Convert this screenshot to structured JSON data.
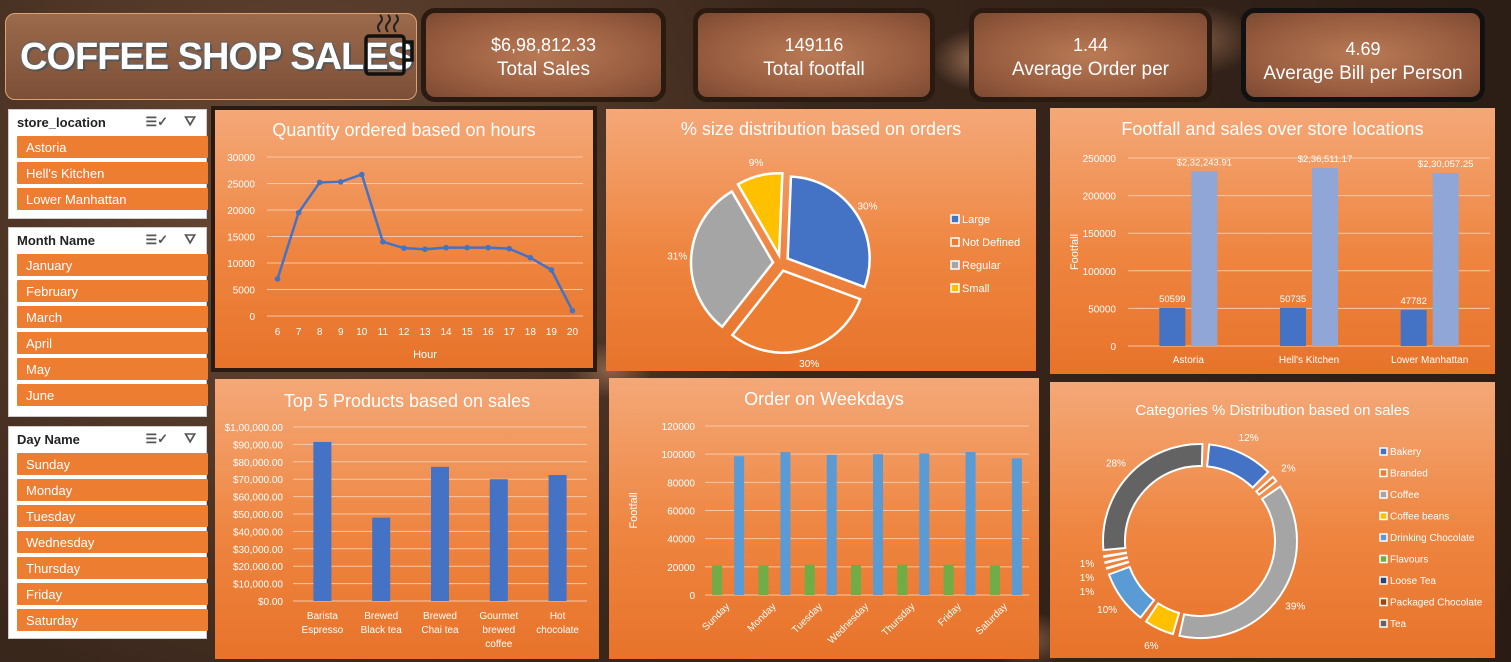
{
  "header": {
    "title": "COFFEE SHOP SALES",
    "cup_icon": "coffee-cup-icon"
  },
  "kpis": [
    {
      "value": "$6,98,812.33",
      "label": "Total Sales"
    },
    {
      "value": "149116",
      "label": "Total footfall"
    },
    {
      "value": "1.44",
      "label": "Average Order per"
    },
    {
      "value": "4.69",
      "label": "Average Bill per Person"
    }
  ],
  "slicers": {
    "store": {
      "title": "store_location",
      "items": [
        "Astoria",
        "Hell's Kitchen",
        "Lower Manhattan"
      ]
    },
    "month": {
      "title": "Month Name",
      "items": [
        "January",
        "February",
        "March",
        "April",
        "May",
        "June"
      ]
    },
    "day": {
      "title": "Day Name",
      "items": [
        "Sunday",
        "Monday",
        "Tuesday",
        "Wednesday",
        "Thursday",
        "Friday",
        "Saturday"
      ]
    }
  },
  "colors": {
    "accent": "#ed7d31",
    "blue": "#4472c4",
    "lightblue": "#8fa6d6",
    "gray": "#a5a5a5",
    "yellow": "#ffc000",
    "green": "#70ad47",
    "darkgray": "#595959",
    "steel": "#5b9bd5"
  },
  "chart_data": [
    {
      "id": "hours",
      "type": "line",
      "title": "Quantity ordered based on hours",
      "xlabel": "Hour",
      "ylabel": "",
      "x": [
        6,
        7,
        8,
        9,
        10,
        11,
        12,
        13,
        14,
        15,
        16,
        17,
        18,
        19,
        20
      ],
      "values": [
        7000,
        19500,
        25200,
        25300,
        26700,
        14000,
        12800,
        12600,
        12900,
        12900,
        12900,
        12700,
        11000,
        8700,
        1000
      ],
      "ylim": [
        0,
        30000
      ],
      "yticks": [
        0,
        5000,
        10000,
        15000,
        20000,
        25000,
        30000
      ]
    },
    {
      "id": "size",
      "type": "pie",
      "title": "% size distribution based on orders",
      "categories": [
        "Large",
        "Not Defined",
        "Regular",
        "Small"
      ],
      "values": [
        30,
        30,
        31,
        9
      ],
      "labels": [
        "30%",
        "30%",
        "31%",
        "9%"
      ],
      "legend": "right"
    },
    {
      "id": "stores",
      "type": "bar",
      "title": "Footfall and sales over store locations",
      "ylabel": "Footfall",
      "categories": [
        "Astoria",
        "Hell's Kitchen",
        "Lower Manhattan"
      ],
      "series": [
        {
          "values": [
            50599,
            50735,
            47782
          ],
          "labels": [
            "50599",
            "50735",
            "47782"
          ]
        },
        {
          "values": [
            232243.91,
            236511.17,
            230057.25
          ],
          "labels": [
            "$2,32,243.91",
            "$2,36,511.17",
            "$2,30,057.25"
          ]
        }
      ],
      "ylim": [
        0,
        250000
      ],
      "yticks": [
        0,
        50000,
        100000,
        150000,
        200000,
        250000
      ]
    },
    {
      "id": "products",
      "type": "bar",
      "title": "Top 5 Products based on sales",
      "categories": [
        "Barista Espresso",
        "Brewed Black tea",
        "Brewed Chai tea",
        "Gourmet brewed coffee",
        "Hot chocolate"
      ],
      "category_lines": [
        [
          "Barista",
          "Espresso"
        ],
        [
          "Brewed",
          "Black tea"
        ],
        [
          "Brewed",
          "Chai tea"
        ],
        [
          "Gourmet",
          "brewed",
          "coffee"
        ],
        [
          "Hot",
          "chocolate"
        ]
      ],
      "values": [
        91400,
        47900,
        77100,
        70000,
        72400
      ],
      "ylim": [
        0,
        100000
      ],
      "ytick_labels": [
        "$0.00",
        "$10,000.00",
        "$20,000.00",
        "$30,000.00",
        "$40,000.00",
        "$50,000.00",
        "$60,000.00",
        "$70,000.00",
        "$80,000.00",
        "$90,000.00",
        "$1,00,000.00"
      ]
    },
    {
      "id": "weekdays",
      "type": "bar",
      "title": "Order on Weekdays",
      "ylabel": "Footfall",
      "categories": [
        "Sunday",
        "Monday",
        "Tuesday",
        "Wednesday",
        "Thursday",
        "Friday",
        "Saturday"
      ],
      "series": [
        {
          "values": [
            21000,
            21000,
            21500,
            21300,
            21500,
            21500,
            21000
          ]
        },
        {
          "values": [
            98500,
            101500,
            99500,
            100000,
            100500,
            101500,
            97000
          ]
        }
      ],
      "ylim": [
        0,
        120000
      ],
      "yticks": [
        0,
        20000,
        40000,
        60000,
        80000,
        100000,
        120000
      ]
    },
    {
      "id": "categories",
      "type": "pie",
      "title": "Categories % Distribution based on sales",
      "categories": [
        "Bakery",
        "Branded",
        "Coffee",
        "Coffee beans",
        "Drinking Chocolate",
        "Flavours",
        "Loose Tea",
        "Packaged Chocolate",
        "Tea"
      ],
      "values": [
        12,
        2,
        39,
        6,
        10,
        1,
        1,
        1,
        28
      ],
      "labels": [
        "12%",
        "2%",
        "39%",
        "6%",
        "10%",
        "1%",
        "1%",
        "1%",
        "28%"
      ],
      "legend": "right"
    }
  ]
}
